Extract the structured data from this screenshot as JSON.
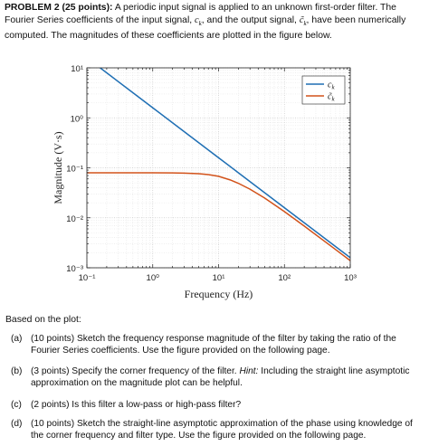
{
  "problem": {
    "heading": "PROBLEM 2 (25 points):",
    "text_1": " A periodic input signal is applied to an unknown first-order filter. The Fourier Series coefficients of the input signal, ",
    "sym_ck": "c",
    "sub_k": "k",
    "text_2": ", and the output signal, ",
    "sym_ctk": "c̃",
    "text_3": ", have been numerically computed. The magnitudes of these coefficients are plotted in the figure below."
  },
  "chart_data": {
    "type": "line",
    "xscale": "log",
    "yscale": "log",
    "xlim": [
      0.1,
      1000
    ],
    "ylim": [
      0.001,
      10
    ],
    "xlabel": "Frequency (Hz)",
    "ylabel": "Magnitude (V·s)",
    "grid": true,
    "legend_placement": "top-right",
    "x_ticks": [
      "10⁻¹",
      "10⁰",
      "10¹",
      "10²",
      "10³"
    ],
    "y_ticks": [
      "10¹",
      "10⁰",
      "10⁻¹",
      "10⁻²",
      "10⁻³"
    ],
    "series": [
      {
        "name": "c_k",
        "color": "#1f6fb4",
        "x": [
          0.1,
          0.2,
          0.5,
          1,
          2,
          5,
          10,
          20,
          50,
          100,
          200,
          500,
          1000
        ],
        "y": [
          15.9,
          7.96,
          3.18,
          1.59,
          0.796,
          0.318,
          0.159,
          0.0796,
          0.0318,
          0.0159,
          0.00796,
          0.00318,
          0.00159
        ]
      },
      {
        "name": "c̃_k",
        "color": "#d2521a",
        "x": [
          0.1,
          0.3,
          1,
          2,
          3,
          5,
          7,
          10,
          15,
          20,
          30,
          50,
          100,
          200,
          500,
          1000
        ],
        "y": [
          0.0795,
          0.0795,
          0.0794,
          0.079,
          0.0784,
          0.0763,
          0.0733,
          0.0676,
          0.0573,
          0.049,
          0.0374,
          0.0249,
          0.0133,
          0.00683,
          0.00277,
          0.00139
        ]
      }
    ]
  },
  "based_on": "Based on the plot:",
  "questions": [
    {
      "label": "(a)",
      "text": "(10 points) Sketch the frequency response magnitude of the filter by taking the ratio of the Fourier Series coefficients. Use the figure provided on the following page."
    },
    {
      "label": "(b)",
      "text_a": "(3 points) Specify the corner frequency of the filter. ",
      "hint": "Hint:",
      "text_b": " Including the straight line asymptotic approximation on the magnitude plot can be helpful."
    },
    {
      "label": "(c)",
      "text": "(2 points) Is this filter a low-pass or high-pass filter?"
    },
    {
      "label": "(d)",
      "text": "(10 points) Sketch the straight-line asymptotic approximation of the phase using knowledge of the corner frequency and filter type. Use the figure provided on the following page."
    }
  ]
}
